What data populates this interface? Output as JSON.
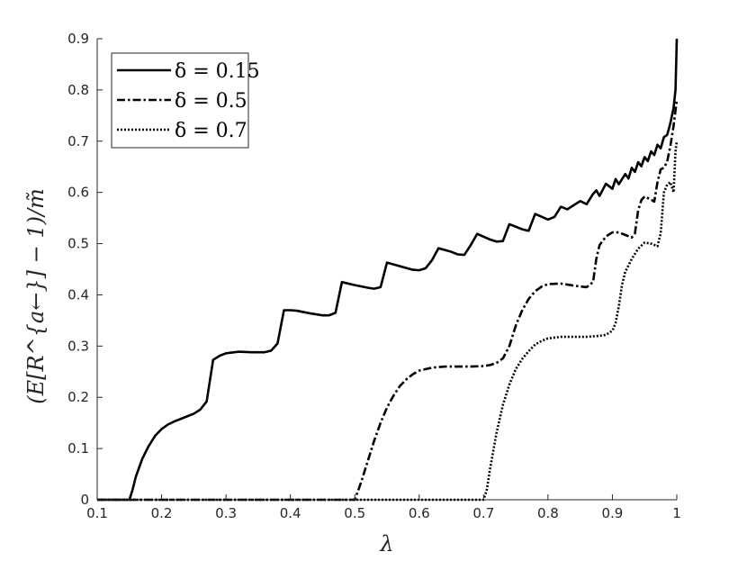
{
  "chart_data": {
    "type": "line",
    "title": "",
    "xlabel": "λ",
    "ylabel": "(E[R^{a←}] − 1)/m̃",
    "xlim": [
      0.1,
      1.0
    ],
    "ylim": [
      0,
      0.9
    ],
    "xticks": [
      "0.1",
      "0.2",
      "0.3",
      "0.4",
      "0.5",
      "0.6",
      "0.7",
      "0.8",
      "0.9",
      "1"
    ],
    "yticks": [
      "0",
      "0.1",
      "0.2",
      "0.3",
      "0.4",
      "0.5",
      "0.6",
      "0.7",
      "0.8",
      "0.9"
    ],
    "grid": false,
    "legend_position": "top-left",
    "series": [
      {
        "name": "δ = 0.15",
        "style": "solid",
        "color": "#000000",
        "points": [
          [
            0.1,
            0
          ],
          [
            0.15,
            0
          ],
          [
            0.155,
            0.02
          ],
          [
            0.16,
            0.045
          ],
          [
            0.17,
            0.08
          ],
          [
            0.18,
            0.105
          ],
          [
            0.19,
            0.125
          ],
          [
            0.2,
            0.138
          ],
          [
            0.21,
            0.147
          ],
          [
            0.22,
            0.153
          ],
          [
            0.23,
            0.158
          ],
          [
            0.24,
            0.163
          ],
          [
            0.25,
            0.168
          ],
          [
            0.26,
            0.176
          ],
          [
            0.27,
            0.192
          ],
          [
            0.28,
            0.273
          ],
          [
            0.29,
            0.281
          ],
          [
            0.3,
            0.286
          ],
          [
            0.32,
            0.289
          ],
          [
            0.34,
            0.288
          ],
          [
            0.36,
            0.288
          ],
          [
            0.37,
            0.291
          ],
          [
            0.38,
            0.305
          ],
          [
            0.39,
            0.37
          ],
          [
            0.4,
            0.37
          ],
          [
            0.41,
            0.369
          ],
          [
            0.43,
            0.364
          ],
          [
            0.45,
            0.36
          ],
          [
            0.46,
            0.36
          ],
          [
            0.47,
            0.365
          ],
          [
            0.48,
            0.425
          ],
          [
            0.5,
            0.419
          ],
          [
            0.52,
            0.414
          ],
          [
            0.53,
            0.412
          ],
          [
            0.54,
            0.415
          ],
          [
            0.55,
            0.463
          ],
          [
            0.57,
            0.456
          ],
          [
            0.59,
            0.449
          ],
          [
            0.6,
            0.448
          ],
          [
            0.61,
            0.452
          ],
          [
            0.62,
            0.468
          ],
          [
            0.63,
            0.491
          ],
          [
            0.65,
            0.484
          ],
          [
            0.66,
            0.479
          ],
          [
            0.67,
            0.478
          ],
          [
            0.68,
            0.497
          ],
          [
            0.69,
            0.519
          ],
          [
            0.71,
            0.508
          ],
          [
            0.72,
            0.504
          ],
          [
            0.73,
            0.505
          ],
          [
            0.74,
            0.538
          ],
          [
            0.76,
            0.528
          ],
          [
            0.77,
            0.525
          ],
          [
            0.78,
            0.558
          ],
          [
            0.8,
            0.547
          ],
          [
            0.81,
            0.552
          ],
          [
            0.82,
            0.572
          ],
          [
            0.83,
            0.567
          ],
          [
            0.84,
            0.575
          ],
          [
            0.85,
            0.583
          ],
          [
            0.86,
            0.577
          ],
          [
            0.87,
            0.597
          ],
          [
            0.875,
            0.604
          ],
          [
            0.88,
            0.593
          ],
          [
            0.89,
            0.617
          ],
          [
            0.9,
            0.607
          ],
          [
            0.905,
            0.626
          ],
          [
            0.91,
            0.616
          ],
          [
            0.92,
            0.636
          ],
          [
            0.925,
            0.627
          ],
          [
            0.93,
            0.648
          ],
          [
            0.935,
            0.64
          ],
          [
            0.94,
            0.659
          ],
          [
            0.945,
            0.651
          ],
          [
            0.95,
            0.669
          ],
          [
            0.955,
            0.661
          ],
          [
            0.96,
            0.68
          ],
          [
            0.965,
            0.673
          ],
          [
            0.97,
            0.693
          ],
          [
            0.975,
            0.686
          ],
          [
            0.98,
            0.708
          ],
          [
            0.985,
            0.712
          ],
          [
            0.99,
            0.735
          ],
          [
            0.995,
            0.765
          ],
          [
            0.998,
            0.8
          ],
          [
            1.0,
            0.9
          ]
        ]
      },
      {
        "name": "δ = 0.5",
        "style": "dashdot",
        "color": "#000000",
        "points": [
          [
            0.1,
            0
          ],
          [
            0.5,
            0
          ],
          [
            0.51,
            0.035
          ],
          [
            0.52,
            0.075
          ],
          [
            0.53,
            0.115
          ],
          [
            0.54,
            0.15
          ],
          [
            0.55,
            0.18
          ],
          [
            0.56,
            0.203
          ],
          [
            0.57,
            0.222
          ],
          [
            0.58,
            0.235
          ],
          [
            0.59,
            0.245
          ],
          [
            0.6,
            0.252
          ],
          [
            0.62,
            0.258
          ],
          [
            0.64,
            0.26
          ],
          [
            0.66,
            0.26
          ],
          [
            0.68,
            0.26
          ],
          [
            0.7,
            0.261
          ],
          [
            0.71,
            0.263
          ],
          [
            0.72,
            0.267
          ],
          [
            0.73,
            0.276
          ],
          [
            0.74,
            0.3
          ],
          [
            0.75,
            0.34
          ],
          [
            0.76,
            0.37
          ],
          [
            0.77,
            0.392
          ],
          [
            0.78,
            0.407
          ],
          [
            0.79,
            0.416
          ],
          [
            0.8,
            0.421
          ],
          [
            0.82,
            0.422
          ],
          [
            0.84,
            0.418
          ],
          [
            0.86,
            0.415
          ],
          [
            0.87,
            0.425
          ],
          [
            0.875,
            0.47
          ],
          [
            0.88,
            0.497
          ],
          [
            0.89,
            0.514
          ],
          [
            0.9,
            0.522
          ],
          [
            0.91,
            0.522
          ],
          [
            0.92,
            0.517
          ],
          [
            0.93,
            0.512
          ],
          [
            0.935,
            0.52
          ],
          [
            0.94,
            0.565
          ],
          [
            0.945,
            0.585
          ],
          [
            0.95,
            0.592
          ],
          [
            0.96,
            0.586
          ],
          [
            0.965,
            0.582
          ],
          [
            0.97,
            0.62
          ],
          [
            0.975,
            0.645
          ],
          [
            0.98,
            0.648
          ],
          [
            0.985,
            0.66
          ],
          [
            0.99,
            0.69
          ],
          [
            0.995,
            0.73
          ],
          [
            1.0,
            0.78
          ]
        ]
      },
      {
        "name": "δ = 0.7",
        "style": "dotted",
        "color": "#000000",
        "points": [
          [
            0.1,
            0
          ],
          [
            0.7,
            0
          ],
          [
            0.705,
            0.02
          ],
          [
            0.71,
            0.06
          ],
          [
            0.72,
            0.13
          ],
          [
            0.73,
            0.185
          ],
          [
            0.74,
            0.225
          ],
          [
            0.75,
            0.255
          ],
          [
            0.76,
            0.275
          ],
          [
            0.77,
            0.29
          ],
          [
            0.78,
            0.303
          ],
          [
            0.79,
            0.31
          ],
          [
            0.8,
            0.315
          ],
          [
            0.82,
            0.318
          ],
          [
            0.84,
            0.318
          ],
          [
            0.86,
            0.318
          ],
          [
            0.88,
            0.32
          ],
          [
            0.89,
            0.322
          ],
          [
            0.9,
            0.33
          ],
          [
            0.905,
            0.345
          ],
          [
            0.91,
            0.378
          ],
          [
            0.915,
            0.42
          ],
          [
            0.92,
            0.445
          ],
          [
            0.93,
            0.47
          ],
          [
            0.94,
            0.49
          ],
          [
            0.95,
            0.502
          ],
          [
            0.96,
            0.5
          ],
          [
            0.97,
            0.495
          ],
          [
            0.975,
            0.52
          ],
          [
            0.98,
            0.6
          ],
          [
            0.985,
            0.615
          ],
          [
            0.99,
            0.62
          ],
          [
            0.995,
            0.6
          ],
          [
            0.998,
            0.68
          ],
          [
            1.0,
            0.7
          ]
        ]
      }
    ]
  }
}
